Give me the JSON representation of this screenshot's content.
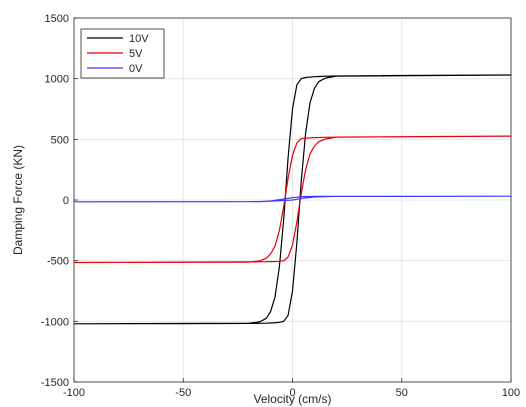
{
  "chart_data": {
    "type": "line",
    "title": "",
    "xlabel": "Velocity (cm/s)",
    "ylabel": "Damping Force (KN)",
    "xlim": [
      -100,
      100
    ],
    "ylim": [
      -1500,
      1500
    ],
    "xticks": [
      -100,
      -50,
      0,
      50,
      100
    ],
    "yticks": [
      -1500,
      -1000,
      -500,
      0,
      500,
      1000,
      1500
    ],
    "grid": true,
    "legend_position": "top-left",
    "series": [
      {
        "name": "10V",
        "color": "#000000",
        "x": [
          -100,
          -20,
          -15,
          -12,
          -10,
          -8,
          -6,
          -4,
          -2,
          0,
          2,
          4,
          6,
          7,
          8,
          9,
          10,
          12,
          15,
          20,
          30,
          50,
          100,
          100,
          20,
          15,
          12,
          10,
          8,
          6,
          4,
          2,
          0,
          -2,
          -4,
          -6,
          -7,
          -8,
          -9,
          -10,
          -12,
          -15,
          -20,
          -30,
          -50,
          -100
        ],
        "y": [
          -1020,
          -1015,
          -1005,
          -975,
          -920,
          -800,
          -550,
          -150,
          350,
          750,
          950,
          1000,
          1010,
          1012,
          1012,
          1015,
          1016,
          1018,
          1020,
          1022,
          1024,
          1026,
          1030,
          1030,
          1020,
          1005,
          975,
          920,
          800,
          550,
          150,
          -350,
          -750,
          -950,
          -1000,
          -1008,
          -1010,
          -1012,
          -1013,
          -1014,
          -1015,
          -1016,
          -1017,
          -1018,
          -1019,
          -1020
        ]
      },
      {
        "name": "5V",
        "color": "#e8000b",
        "x": [
          -100,
          -20,
          -15,
          -12,
          -10,
          -8,
          -6,
          -4,
          -2,
          0,
          2,
          4,
          6,
          8,
          10,
          15,
          20,
          50,
          100,
          100,
          20,
          15,
          12,
          10,
          8,
          6,
          4,
          2,
          0,
          -2,
          -4,
          -6,
          -8,
          -10,
          -15,
          -20,
          -50,
          -100
        ],
        "y": [
          -515,
          -512,
          -502,
          -480,
          -445,
          -380,
          -250,
          -50,
          180,
          370,
          470,
          505,
          510,
          512,
          514,
          517,
          518,
          522,
          527,
          527,
          518,
          502,
          480,
          445,
          380,
          250,
          50,
          -180,
          -370,
          -470,
          -500,
          -505,
          -507,
          -508,
          -509,
          -510,
          -512,
          -515
        ]
      },
      {
        "name": "0V",
        "color": "#3b3bff",
        "x": [
          -100,
          -20,
          -15,
          -10,
          -5,
          0,
          5,
          10,
          15,
          20,
          50,
          100,
          100,
          20,
          15,
          10,
          5,
          0,
          -5,
          -10,
          -15,
          -20,
          -50,
          -100
        ],
        "y": [
          -15,
          -14,
          -13,
          -8,
          5,
          20,
          28,
          30,
          30,
          30,
          30,
          31,
          31,
          30,
          28,
          25,
          15,
          0,
          -5,
          -10,
          -13,
          -14,
          -14,
          -15
        ]
      }
    ]
  }
}
